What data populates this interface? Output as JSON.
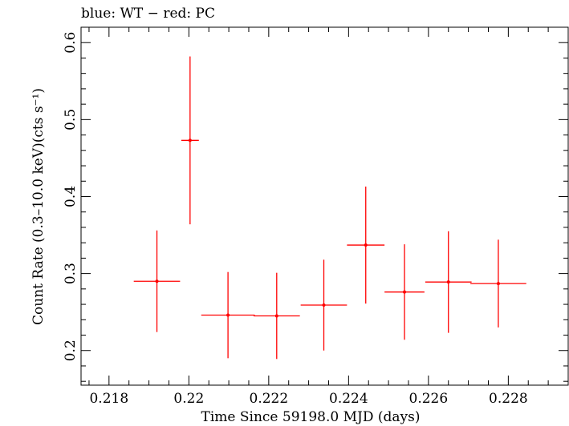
{
  "chart_data": {
    "type": "scatter",
    "title": "blue: WT − red: PC",
    "xlabel": "Time Since 59198.0 MJD (days)",
    "ylabel": "Count Rate (0.3–10.0 keV)(cts s⁻¹)",
    "xlim": [
      0.2173,
      0.2295
    ],
    "ylim": [
      0.155,
      0.62
    ],
    "x_ticks": [
      0.218,
      0.22,
      0.222,
      0.224,
      0.226,
      0.228
    ],
    "x_tick_labels": [
      "0.218",
      "0.22",
      "0.222",
      "0.224",
      "0.226",
      "0.228"
    ],
    "y_ticks": [
      0.2,
      0.3,
      0.4,
      0.5,
      0.6
    ],
    "y_tick_labels": [
      "0.2",
      "0.3",
      "0.4",
      "0.5",
      "0.6"
    ],
    "grid": false,
    "series": [
      {
        "name": "PC",
        "color": "#ff0000",
        "points": [
          {
            "x": 0.2192,
            "xerr_lo": 0.00058,
            "xerr_hi": 0.00058,
            "y": 0.29,
            "yerr_lo": 0.066,
            "yerr_hi": 0.066
          },
          {
            "x": 0.22003,
            "xerr_lo": 0.00022,
            "xerr_hi": 0.00022,
            "y": 0.473,
            "yerr_lo": 0.109,
            "yerr_hi": 0.109
          },
          {
            "x": 0.22098,
            "xerr_lo": 0.00067,
            "xerr_hi": 0.00067,
            "y": 0.246,
            "yerr_lo": 0.056,
            "yerr_hi": 0.056
          },
          {
            "x": 0.2222,
            "xerr_lo": 0.00058,
            "xerr_hi": 0.00058,
            "y": 0.245,
            "yerr_lo": 0.056,
            "yerr_hi": 0.056
          },
          {
            "x": 0.22338,
            "xerr_lo": 0.00058,
            "xerr_hi": 0.00058,
            "y": 0.259,
            "yerr_lo": 0.059,
            "yerr_hi": 0.059
          },
          {
            "x": 0.22443,
            "xerr_lo": 0.00047,
            "xerr_hi": 0.00047,
            "y": 0.337,
            "yerr_lo": 0.076,
            "yerr_hi": 0.076
          },
          {
            "x": 0.2254,
            "xerr_lo": 0.0005,
            "xerr_hi": 0.0005,
            "y": 0.276,
            "yerr_lo": 0.062,
            "yerr_hi": 0.062
          },
          {
            "x": 0.2265,
            "xerr_lo": 0.00058,
            "xerr_hi": 0.00058,
            "y": 0.289,
            "yerr_lo": 0.066,
            "yerr_hi": 0.066
          },
          {
            "x": 0.22775,
            "xerr_lo": 0.0007,
            "xerr_hi": 0.0007,
            "y": 0.287,
            "yerr_lo": 0.057,
            "yerr_hi": 0.057
          }
        ]
      }
    ]
  }
}
